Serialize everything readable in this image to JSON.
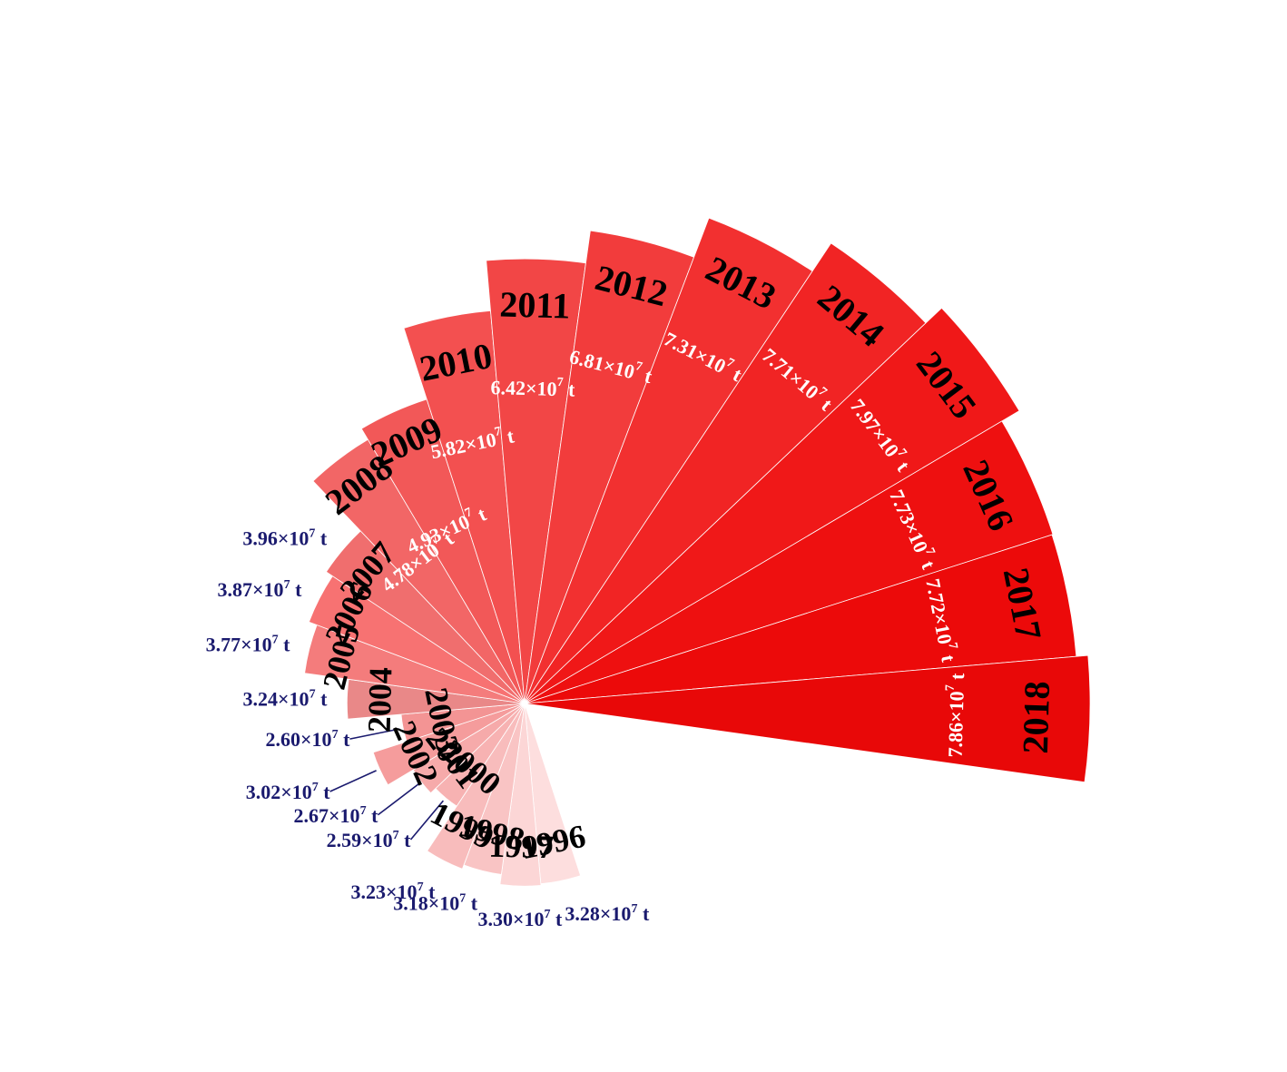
{
  "chart_data": {
    "type": "pie",
    "subtype": "nightingale-rose",
    "unit": "t",
    "categories": [
      "1996",
      "1997",
      "1998",
      "1999",
      "2000",
      "2001",
      "2002",
      "2003",
      "2004",
      "2005",
      "2006",
      "2007",
      "2008",
      "2009",
      "2010",
      "2011",
      "2012",
      "2013",
      "2014",
      "2015",
      "2016",
      "2017",
      "2018"
    ],
    "values": [
      32800000,
      33000000,
      31800000,
      32300000,
      25900000,
      26700000,
      30200000,
      26000000,
      32400000,
      37700000,
      38700000,
      39600000,
      47800000,
      49300000,
      58200000,
      64200000,
      68100000,
      73100000,
      77100000,
      79700000,
      77300000,
      77200000,
      78600000
    ],
    "value_labels": [
      {
        "mantissa": "3.28×10",
        "exp": "7",
        "unit": "t"
      },
      {
        "mantissa": "3.30×10",
        "exp": "7",
        "unit": "t"
      },
      {
        "mantissa": "3.18×10",
        "exp": "7",
        "unit": "t"
      },
      {
        "mantissa": "3.23×10",
        "exp": "7",
        "unit": "t"
      },
      {
        "mantissa": "2.59×10",
        "exp": "7",
        "unit": "t"
      },
      {
        "mantissa": "2.67×10",
        "exp": "7",
        "unit": "t"
      },
      {
        "mantissa": "3.02×10",
        "exp": "7",
        "unit": "t"
      },
      {
        "mantissa": "2.60×10",
        "exp": "7",
        "unit": "t"
      },
      {
        "mantissa": "3.24×10",
        "exp": "7",
        "unit": "t"
      },
      {
        "mantissa": "3.77×10",
        "exp": "7",
        "unit": "t"
      },
      {
        "mantissa": "3.87×10",
        "exp": "7",
        "unit": "t"
      },
      {
        "mantissa": "3.96×10",
        "exp": "7",
        "unit": "t"
      },
      {
        "mantissa": "4.78×10",
        "exp": "7",
        "unit": "t"
      },
      {
        "mantissa": "4.93×10",
        "exp": "7",
        "unit": "t"
      },
      {
        "mantissa": "5.82×10",
        "exp": "7",
        "unit": "t"
      },
      {
        "mantissa": "6.42×10",
        "exp": "7",
        "unit": "t"
      },
      {
        "mantissa": "6.81×10",
        "exp": "7",
        "unit": "t"
      },
      {
        "mantissa": "7.31×10",
        "exp": "7",
        "unit": "t"
      },
      {
        "mantissa": "7.71×10",
        "exp": "7",
        "unit": "t"
      },
      {
        "mantissa": "7.97×10",
        "exp": "7",
        "unit": "t"
      },
      {
        "mantissa": "7.73×10",
        "exp": "7",
        "unit": "t"
      },
      {
        "mantissa": "7.72×10",
        "exp": "7",
        "unit": "t"
      },
      {
        "mantissa": "7.86×10",
        "exp": "7",
        "unit": "t"
      }
    ],
    "colors": [
      "#fddede",
      "#fcd6d6",
      "#f9c4c4",
      "#f8bcbc",
      "#f7b2b2",
      "#f6aaaa",
      "#f59c9c",
      "#f39494",
      "#e98888",
      "#f47c7c",
      "#f77272",
      "#f06e6e",
      "#f26666",
      "#f25858",
      "#f35050",
      "#f24646",
      "#f23c3c",
      "#f23030",
      "#f12424",
      "#f01818",
      "#ee1010",
      "#ec0a0a",
      "#e80808"
    ],
    "label_colors": {
      "outside": "#1a1a6e",
      "inside": "#ffffff",
      "year": "#000000"
    },
    "title": "",
    "legend": "none",
    "grid": false
  }
}
